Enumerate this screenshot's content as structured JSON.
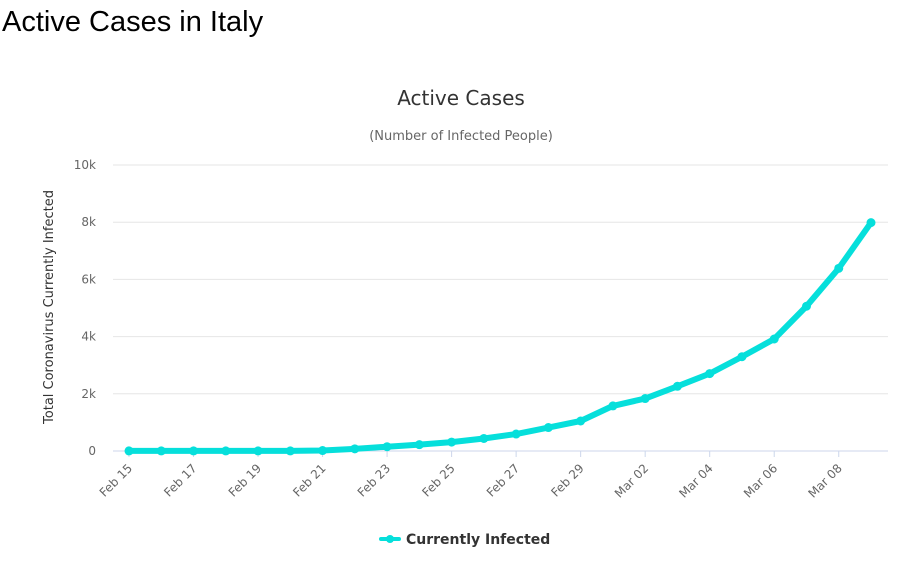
{
  "page": {
    "heading": "Active Cases in Italy"
  },
  "colors": {
    "series": "#06dfdb",
    "grid": "#e6e6e6",
    "axis": "#ccd6eb"
  },
  "chart_data": {
    "type": "line",
    "title": "Active Cases",
    "subtitle": "(Number of Infected People)",
    "ylabel": "Total Coronavirus Currently Infected",
    "xlabel": "",
    "ylim": [
      0,
      10000
    ],
    "yticks": [
      0,
      2000,
      4000,
      6000,
      8000,
      10000
    ],
    "ytick_labels": [
      "0",
      "2k",
      "4k",
      "6k",
      "8k",
      "10k"
    ],
    "grid": true,
    "legend_position": "bottom-center",
    "x": [
      "Feb 15",
      "Feb 16",
      "Feb 17",
      "Feb 18",
      "Feb 19",
      "Feb 20",
      "Feb 21",
      "Feb 22",
      "Feb 23",
      "Feb 24",
      "Feb 25",
      "Feb 26",
      "Feb 27",
      "Feb 28",
      "Feb 29",
      "Mar 01",
      "Mar 02",
      "Mar 03",
      "Mar 04",
      "Mar 05",
      "Mar 06",
      "Mar 07",
      "Mar 08",
      "Mar 09"
    ],
    "xtick_labels": [
      "Feb 15",
      "Feb 17",
      "Feb 19",
      "Feb 21",
      "Feb 23",
      "Feb 25",
      "Feb 27",
      "Feb 29",
      "Mar 02",
      "Mar 04",
      "Mar 06",
      "Mar 08"
    ],
    "series": [
      {
        "name": "Currently Infected",
        "values": [
          3,
          3,
          3,
          3,
          3,
          3,
          17,
          76,
          150,
          221,
          311,
          438,
          593,
          821,
          1049,
          1577,
          1835,
          2263,
          2706,
          3296,
          3916,
          5061,
          6387,
          7985
        ]
      }
    ]
  }
}
